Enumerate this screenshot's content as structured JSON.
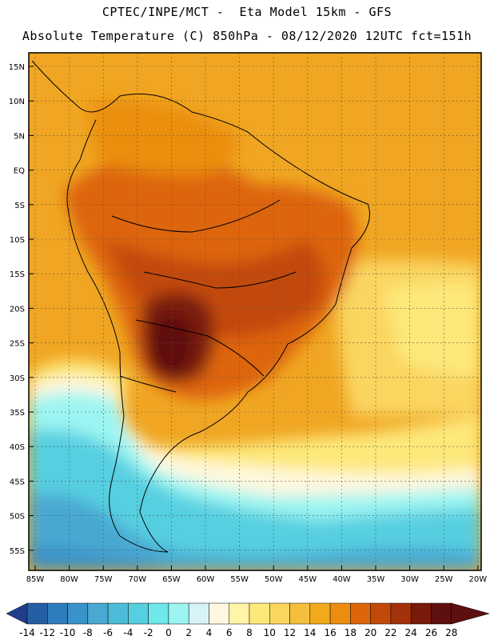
{
  "header": {
    "line1": "CPTEC/INPE/MCT -  Eta Model 15km - GFS",
    "line2": "Absolute Temperature (C) 850hPa - 08/12/2020 12UTC fct=151h"
  },
  "axes": {
    "lat_labels": [
      "15N",
      "10N",
      "5N",
      "EQ",
      "5S",
      "10S",
      "15S",
      "20S",
      "25S",
      "30S",
      "35S",
      "40S",
      "45S",
      "50S",
      "55S"
    ],
    "lon_labels": [
      "85W",
      "80W",
      "75W",
      "70W",
      "65W",
      "60W",
      "55W",
      "50W",
      "45W",
      "40W",
      "35W",
      "30W",
      "25W",
      "20W"
    ]
  },
  "colorbar": {
    "tick_labels": [
      "-14",
      "-12",
      "-10",
      "-8",
      "-6",
      "-4",
      "-2",
      "0",
      "2",
      "4",
      "6",
      "8",
      "10",
      "12",
      "14",
      "16",
      "18",
      "20",
      "22",
      "24",
      "26",
      "28"
    ],
    "colors": [
      "#1f3f8c",
      "#265ea4",
      "#2f7cbc",
      "#3a93c8",
      "#4aa8d2",
      "#4dbcd8",
      "#56cfe0",
      "#6ee8ea",
      "#9cf5f2",
      "#d8f3f8",
      "#fff8df",
      "#fff4a8",
      "#fde87a",
      "#fad560",
      "#f5bf3c",
      "#f1aa1a",
      "#eb8e10",
      "#dd650a",
      "#c24a08",
      "#a3320a",
      "#7a1a0a",
      "#5e0f0f",
      "#5e0f0f"
    ]
  }
}
